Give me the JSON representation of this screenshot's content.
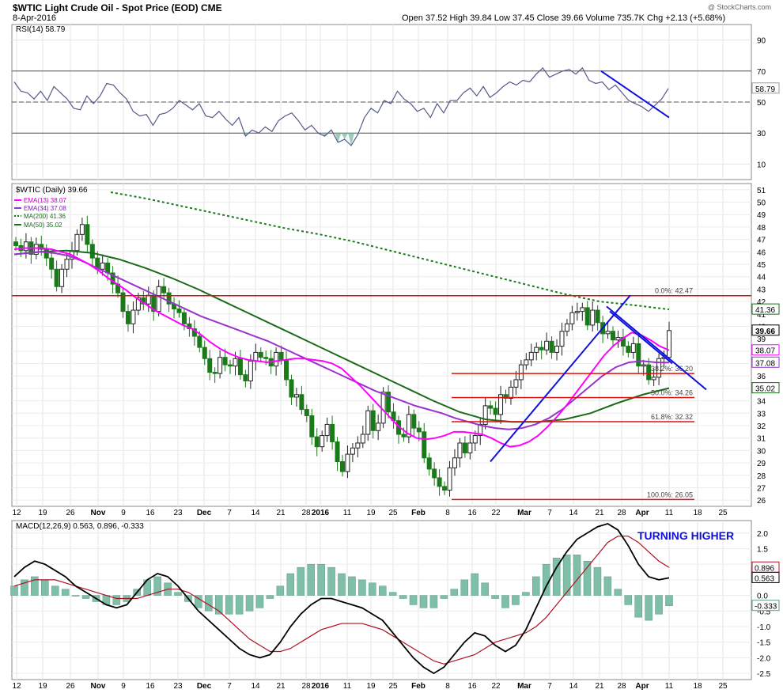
{
  "header": {
    "title": "$WTIC Light Crude Oil - Spot Price (EOD) CME",
    "date": "8-Apr-2016",
    "ohlc": "Open 37.52   High 39.84   Low 37.45   Close 39.66   Volume 735.7K   Chg +2.13 (+5.68%)",
    "watermark": "@ StockCharts.com"
  },
  "x_axis": {
    "ticks": [
      "12",
      "19",
      "26",
      "Nov",
      "9",
      "16",
      "23",
      "Dec",
      "7",
      "14",
      "21",
      "28",
      "2016",
      "11",
      "19",
      "25",
      "Feb",
      "8",
      "16",
      "22",
      "Mar",
      "7",
      "14",
      "21",
      "28",
      "Apr",
      "11",
      "18",
      "25"
    ],
    "months": [
      "Nov",
      "Dec",
      "2016",
      "Feb",
      "Mar",
      "Apr"
    ]
  },
  "colors": {
    "price_up": "#222222",
    "price_down": "#1a7a1a",
    "ema13": "#ff00ff",
    "ema34": "#9933cc",
    "ma200": "#1a7a1a",
    "ma50": "#1a6b1a",
    "support": "#e01010",
    "trend": "#1010dd",
    "macd": "#000000",
    "signal": "#b01020",
    "hist": "#7fbfa8",
    "rsi": "#555a8a"
  },
  "chart_data": [
    {
      "type": "line",
      "panel": "RSI",
      "title": "RSI(14) 58.79",
      "legend": [
        {
          "name": "RSI(14) 58.79"
        }
      ],
      "yticks": [
        90,
        70,
        50,
        30,
        10
      ],
      "ylim": [
        0,
        100
      ],
      "levels": [
        70,
        50,
        30
      ],
      "last_label": "58.79",
      "x": [
        0,
        3,
        6,
        9,
        12,
        15,
        18,
        21,
        24,
        27,
        30,
        33,
        36,
        39,
        42,
        45,
        48,
        51,
        54,
        57,
        60,
        63,
        66,
        69,
        72,
        75,
        78,
        81,
        84,
        87,
        90,
        93,
        96,
        99,
        102,
        105,
        108,
        111,
        114,
        117,
        120,
        123,
        126,
        129,
        132,
        135,
        138,
        141,
        144,
        147,
        150,
        153,
        156,
        159,
        162,
        165,
        168,
        171,
        174,
        177,
        180,
        183,
        186,
        189,
        192,
        195,
        198,
        201,
        204,
        207,
        210,
        213,
        216,
        219,
        222,
        225,
        228,
        231,
        234,
        237,
        240,
        243,
        246,
        249,
        252,
        255,
        258,
        261,
        264,
        267,
        270,
        273,
        276,
        279,
        282,
        285,
        288,
        291,
        294,
        297
      ],
      "values": [
        63,
        57,
        56,
        52,
        57,
        51,
        60,
        56,
        52,
        46,
        45,
        54,
        49,
        54,
        62,
        61,
        56,
        52,
        44,
        41,
        42,
        35,
        42,
        43,
        46,
        51,
        48,
        45,
        49,
        41,
        40,
        44,
        39,
        35,
        40,
        28,
        32,
        30,
        34,
        31,
        38,
        41,
        43,
        38,
        32,
        35,
        30,
        28,
        32,
        24,
        26,
        22,
        29,
        40,
        46,
        43,
        51,
        49,
        57,
        52,
        49,
        44,
        46,
        40,
        49,
        43,
        51,
        51,
        56,
        59,
        54,
        60,
        53,
        56,
        60,
        63,
        61,
        64,
        63,
        68,
        72,
        66,
        68,
        70,
        71,
        68,
        72,
        64,
        62,
        63,
        58,
        61,
        56,
        51,
        49,
        47,
        44,
        48,
        52,
        58.79
      ],
      "trendline": [
        [
          275,
          70
        ],
        [
          307,
          40
        ]
      ]
    },
    {
      "type": "candlestick",
      "panel": "price",
      "title": "$WTIC (Daily) 39.66",
      "legend": [
        {
          "name": "EMA(13) 38.07"
        },
        {
          "name": "EMA(34) 37.08"
        },
        {
          "name": "MA(200) 41.36"
        },
        {
          "name": "MA(50) 35.02"
        }
      ],
      "yticks": [
        51,
        50,
        49,
        48,
        47,
        46,
        45,
        44,
        43,
        42,
        41,
        40,
        39,
        38,
        37,
        36,
        35,
        34,
        33,
        32,
        31,
        30,
        29,
        28,
        27,
        26
      ],
      "ylim": [
        25.5,
        51.5
      ],
      "close": [
        46.5,
        46.1,
        46.8,
        45.8,
        46.6,
        46.2,
        45.5,
        44.6,
        43.2,
        44.6,
        45.4,
        46.1,
        47.4,
        48.2,
        46.6,
        45.5,
        44.6,
        45.1,
        44.3,
        43.4,
        42.7,
        41.2,
        40.2,
        41.3,
        42.3,
        41.8,
        42.5,
        41.2,
        43.2,
        42.7,
        41.8,
        41.4,
        41.1,
        40.2,
        39.8,
        39.2,
        38.3,
        37.4,
        36.3,
        36.2,
        37.5,
        36.9,
        36.8,
        37.4,
        36.1,
        35.6,
        37.2,
        37.9,
        37.5,
        37.4,
        36.8,
        37.9,
        37.3,
        35.7,
        34.3,
        34.5,
        33.3,
        32.8,
        31.1,
        30.3,
        31.2,
        32.1,
        30.7,
        29.1,
        28.3,
        29.7,
        30.2,
        30.6,
        31.3,
        33.2,
        31.6,
        32.2,
        34.7,
        33.1,
        32.4,
        31.3,
        31.1,
        32.9,
        31.8,
        31.5,
        29.4,
        28.5,
        27.8,
        27.1,
        26.8,
        28.6,
        29.4,
        30.6,
        29.8,
        30.6,
        31.2,
        32.1,
        33.6,
        33.4,
        32.9,
        34.5,
        34.2,
        35.1,
        35.7,
        36.9,
        37.3,
        37.9,
        38.3,
        38.1,
        38.8,
        37.9,
        38.4,
        39.6,
        40.2,
        41.1,
        41.2,
        41.5,
        40.1,
        41.3,
        40.3,
        39.4,
        39.6,
        38.9,
        39.1,
        38.4,
        37.9,
        38.6,
        36.8,
        36.9,
        35.7,
        35.9,
        37.4,
        37.5,
        39.66
      ],
      "ema13_end": 38.07,
      "ema34_end": 37.08,
      "ma200_end": 41.36,
      "ma50_end": 35.02,
      "ema13": [
        46.2,
        46.3,
        46.3,
        46.3,
        46.2,
        46.0,
        45.8,
        45.4,
        45.0,
        44.5,
        43.9,
        43.4,
        42.9,
        42.3,
        41.8,
        41.3,
        40.9,
        40.5,
        40.1,
        39.8,
        39.3,
        38.7,
        38.2,
        37.8,
        37.5,
        37.3,
        37.2,
        37.1,
        37.2,
        37.3,
        37.4,
        37.4,
        37.3,
        37.2,
        37.0,
        36.6,
        35.9,
        35.2,
        34.4,
        33.6,
        32.8,
        32.0,
        31.4,
        31.0,
        30.9,
        31.0,
        31.2,
        31.5,
        31.5,
        31.4,
        31.3,
        31.0,
        30.6,
        30.3,
        30.4,
        30.7,
        31.2,
        31.9,
        32.7,
        33.6,
        34.6,
        35.6,
        36.6,
        37.6,
        38.4,
        39.0,
        39.5,
        39.3,
        38.9,
        38.4,
        38.07
      ],
      "ema34": [
        45.8,
        45.9,
        46.0,
        45.9,
        45.7,
        45.3,
        44.8,
        44.3,
        43.8,
        43.3,
        42.8,
        42.3,
        41.8,
        41.3,
        40.8,
        40.4,
        40.0,
        39.6,
        39.2,
        38.8,
        38.3,
        37.8,
        37.3,
        36.8,
        36.3,
        35.8,
        35.3,
        34.8,
        34.4,
        34.0,
        33.6,
        33.3,
        33.0,
        32.6,
        32.3,
        32.0,
        31.8,
        31.7,
        31.8,
        32.1,
        32.6,
        33.3,
        34.2,
        35.1,
        36.0,
        36.7,
        37.1,
        37.2,
        37.1,
        37.08
      ],
      "ma200": [
        50.8,
        50.3,
        49.7,
        49.1,
        48.5,
        47.9,
        47.4,
        46.8,
        46.1,
        45.4,
        44.7,
        44.0,
        43.3,
        42.6,
        42.0,
        41.7,
        41.36
      ],
      "ma50": [
        45.8,
        46.0,
        46.1,
        45.9,
        45.4,
        44.7,
        43.9,
        43.0,
        42.0,
        41.0,
        40.0,
        39.0,
        38.0,
        37.0,
        36.0,
        35.0,
        34.0,
        33.1,
        32.5,
        32.3,
        32.3,
        32.5,
        33.0,
        33.8,
        34.5,
        35.02
      ],
      "fib_levels": [
        {
          "label": "0.0%: 42.47",
          "value": 42.47
        },
        {
          "label": "38.2%: 36.20",
          "value": 36.2
        },
        {
          "label": "50.0%: 34.26",
          "value": 34.26
        },
        {
          "label": "61.8%: 32.32",
          "value": 32.32
        },
        {
          "label": "100.0%: 26.05",
          "value": 26.05
        }
      ],
      "resistance": 42.47,
      "last_labels": [
        "41.36",
        "39.66",
        "38.07",
        "37.08",
        "35.02"
      ]
    },
    {
      "type": "bar",
      "panel": "MACD",
      "title": "MACD(12,26,9) 0.563, 0.896, -0.333",
      "legend": [
        {
          "name": "MACD(12,26,9) 0.563, 0.896, -0.333"
        }
      ],
      "annotation": "TURNING HIGHER",
      "yticks": [
        2.0,
        1.5,
        1.0,
        0.5,
        0.0,
        -0.5,
        -1.0,
        -1.5,
        -2.0,
        -2.5
      ],
      "ylim": [
        -2.7,
        2.4
      ],
      "last_labels": [
        "0.896",
        "0.563",
        "-0.333"
      ],
      "macd": [
        0.6,
        0.9,
        1.1,
        1.0,
        0.8,
        0.6,
        0.3,
        0.1,
        -0.1,
        -0.3,
        -0.4,
        -0.3,
        0.1,
        0.5,
        0.7,
        0.6,
        0.3,
        -0.1,
        -0.5,
        -0.8,
        -1.1,
        -1.4,
        -1.7,
        -1.9,
        -2.0,
        -1.9,
        -1.5,
        -1.0,
        -0.6,
        -0.3,
        -0.1,
        -0.1,
        -0.2,
        -0.3,
        -0.4,
        -0.6,
        -0.8,
        -1.2,
        -1.6,
        -2.0,
        -2.3,
        -2.5,
        -2.3,
        -1.9,
        -1.5,
        -1.2,
        -1.3,
        -1.6,
        -1.8,
        -1.6,
        -1.1,
        -0.4,
        0.3,
        0.9,
        1.4,
        1.8,
        2.0,
        2.2,
        2.3,
        2.1,
        1.6,
        1.0,
        0.6,
        0.5,
        0.563
      ],
      "signal": [
        0.3,
        0.4,
        0.5,
        0.5,
        0.5,
        0.4,
        0.3,
        0.2,
        0.1,
        0.0,
        -0.1,
        -0.1,
        -0.1,
        0.0,
        0.1,
        0.2,
        0.2,
        0.1,
        -0.1,
        -0.3,
        -0.5,
        -0.8,
        -1.1,
        -1.4,
        -1.6,
        -1.8,
        -1.8,
        -1.7,
        -1.5,
        -1.3,
        -1.1,
        -1.0,
        -0.9,
        -0.9,
        -0.9,
        -1.0,
        -1.1,
        -1.3,
        -1.5,
        -1.7,
        -1.9,
        -2.1,
        -2.2,
        -2.1,
        -2.0,
        -1.9,
        -1.7,
        -1.5,
        -1.4,
        -1.3,
        -1.2,
        -1.0,
        -0.7,
        -0.3,
        0.1,
        0.5,
        0.9,
        1.3,
        1.7,
        1.9,
        1.9,
        1.7,
        1.4,
        1.1,
        0.896
      ],
      "hist": [
        0.3,
        0.5,
        0.6,
        0.5,
        0.3,
        0.2,
        0.0,
        -0.1,
        -0.2,
        -0.3,
        -0.3,
        -0.2,
        0.2,
        0.5,
        0.6,
        0.4,
        0.1,
        -0.2,
        -0.4,
        -0.5,
        -0.6,
        -0.6,
        -0.6,
        -0.5,
        -0.4,
        -0.1,
        0.3,
        0.7,
        0.9,
        1.0,
        1.0,
        0.9,
        0.7,
        0.6,
        0.5,
        0.4,
        0.3,
        0.1,
        -0.1,
        -0.3,
        -0.4,
        -0.4,
        -0.1,
        0.2,
        0.5,
        0.7,
        0.4,
        -0.1,
        -0.4,
        -0.3,
        0.1,
        0.6,
        1.0,
        1.2,
        1.3,
        1.3,
        1.1,
        0.9,
        0.6,
        0.2,
        -0.3,
        -0.7,
        -0.8,
        -0.6,
        -0.333
      ]
    }
  ]
}
